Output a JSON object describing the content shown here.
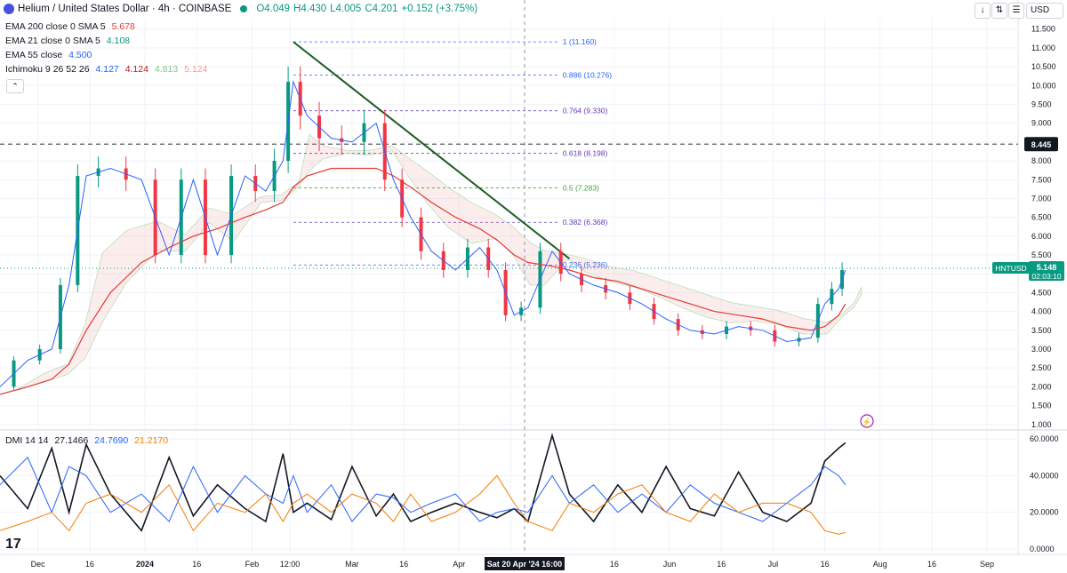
{
  "header": {
    "symbol": "Helium / United States Dollar · 4h · COINBASE",
    "open": "O4.049",
    "high": "H4.430",
    "low": "L4.005",
    "close": "C4.201",
    "change": "+0.152 (+3.75%)"
  },
  "indicators": [
    {
      "label": "EMA 200 close 0 SMA 5",
      "value": "5.678",
      "color": "#e53935"
    },
    {
      "label": "EMA 21 close 0 SMA 5",
      "value": "4.108",
      "color": "#089981"
    },
    {
      "label": "EMA 55 close",
      "value": "4.500",
      "color": "#2962ff"
    },
    {
      "label": "Ichimoku 9 26 52 26",
      "values": [
        "4.127",
        "4.124",
        "4.813",
        "5.124"
      ],
      "colors": [
        "#2962ff",
        "#b71c1c",
        "#81c784",
        "#ef9a9a"
      ]
    }
  ],
  "dmi_legend": {
    "label": "DMI 14 14",
    "values": [
      "27.1466",
      "24.7690",
      "21.2170"
    ],
    "colors": [
      "#131722",
      "#2962ff",
      "#f57c00"
    ]
  },
  "top_controls": {
    "down": "↓",
    "updown": "⇅",
    "menu": "☰",
    "expand": "⛶",
    "currency": "USD"
  },
  "price_axis": {
    "ticks": [
      "11.500",
      "11.000",
      "10.500",
      "10.000",
      "9.500",
      "9.000",
      "8.500",
      "8.000",
      "7.500",
      "7.000",
      "6.500",
      "6.000",
      "5.500",
      "5.000",
      "4.500",
      "4.000",
      "3.500",
      "3.000",
      "2.500",
      "2.000",
      "1.500",
      "1.000"
    ],
    "marker_line_value": "8.445",
    "symbol_tag": "HNTUSD",
    "last_price": "5.148",
    "countdown": "02:03:10"
  },
  "dmi_axis": {
    "ticks": [
      "60.0000",
      "40.0000",
      "20.0000",
      "0.0000"
    ]
  },
  "time_axis": {
    "ticks": [
      "Dec",
      "16",
      "2024",
      "16",
      "Feb",
      "12:00",
      "Mar",
      "16",
      "Apr",
      "16",
      "16",
      "Jun",
      "16",
      "Jul",
      "16",
      "Aug",
      "16",
      "Sep"
    ],
    "crosshair_label": "Sat 20 Apr '24   16:00"
  },
  "fib_levels": [
    {
      "label": "1 (11.160)",
      "color": "#2962ff"
    },
    {
      "label": "0.886 (10.276)",
      "color": "#2962ff"
    },
    {
      "label": "0.764 (9.330)",
      "color": "#673ab7"
    },
    {
      "label": "0.618 (8.198)",
      "color": "#673ab7"
    },
    {
      "label": "0.5 (7.283)",
      "color": "#43a047"
    },
    {
      "label": "0.382 (6.368)",
      "color": "#673ab7"
    },
    {
      "label": "0.236 (5.236)",
      "color": "#2962ff"
    }
  ],
  "logo_text": "17",
  "chart_data": [
    {
      "type": "line",
      "xlabel": "",
      "ylabel": "",
      "x": [
        "2023-11-20",
        "2023-11-28",
        "2023-12-05",
        "2023-12-10",
        "2023-12-15",
        "2023-12-22",
        "2023-12-31",
        "2024-01-08",
        "2024-01-15",
        "2024-01-22",
        "2024-01-30",
        "2024-02-05",
        "2024-02-10",
        "2024-02-13",
        "2024-02-17",
        "2024-02-24",
        "2024-03-01",
        "2024-03-08",
        "2024-03-13",
        "2024-03-18",
        "2024-03-24",
        "2024-03-31",
        "2024-04-07",
        "2024-04-12",
        "2024-04-17",
        "2024-04-21",
        "2024-04-28",
        "2024-05-03",
        "2024-05-10",
        "2024-05-17",
        "2024-05-24",
        "2024-05-31",
        "2024-06-07",
        "2024-06-14",
        "2024-06-21",
        "2024-06-28",
        "2024-07-05",
        "2024-07-12",
        "2024-07-16",
        "2024-07-20",
        "2024-07-22"
      ],
      "series": [
        {
          "name": "",
          "values": [
            2.0,
            2.7,
            3.0,
            4.7,
            7.6,
            7.8,
            7.5,
            5.5,
            7.5,
            5.5,
            7.6,
            7.2,
            8.0,
            10.1,
            9.2,
            8.6,
            8.5,
            9.0,
            7.5,
            6.5,
            5.6,
            5.1,
            5.7,
            5.1,
            3.9,
            4.1,
            5.6,
            5.0,
            4.7,
            4.5,
            4.2,
            3.8,
            3.5,
            3.4,
            3.6,
            3.5,
            3.2,
            3.3,
            4.2,
            4.6,
            5.1
          ]
        },
        {
          "name": "",
          "values": [
            1.8,
            2.0,
            2.2,
            2.6,
            3.5,
            4.5,
            5.3,
            5.7,
            6.0,
            6.2,
            6.5,
            6.7,
            6.9,
            7.3,
            7.6,
            7.8,
            7.8,
            7.8,
            7.6,
            7.3,
            6.9,
            6.5,
            6.2,
            5.9,
            5.5,
            5.3,
            5.2,
            5.1,
            4.9,
            4.8,
            4.6,
            4.4,
            4.2,
            4.0,
            3.9,
            3.8,
            3.6,
            3.5,
            3.6,
            3.9,
            4.2
          ]
        }
      ],
      "ylim": [
        0.9,
        11.8
      ]
    },
    {
      "type": "line",
      "x": [
        "2023-11-20",
        "2023-11-28",
        "2023-12-05",
        "2023-12-10",
        "2023-12-15",
        "2023-12-22",
        "2023-12-31",
        "2024-01-08",
        "2024-01-15",
        "2024-01-22",
        "2024-01-30",
        "2024-02-05",
        "2024-02-10",
        "2024-02-13",
        "2024-02-17",
        "2024-02-24",
        "2024-03-01",
        "2024-03-08",
        "2024-03-13",
        "2024-03-18",
        "2024-03-24",
        "2024-03-31",
        "2024-04-07",
        "2024-04-12",
        "2024-04-17",
        "2024-04-21",
        "2024-04-28",
        "2024-05-03",
        "2024-05-10",
        "2024-05-17",
        "2024-05-24",
        "2024-05-31",
        "2024-06-07",
        "2024-06-14",
        "2024-06-21",
        "2024-06-28",
        "2024-07-05",
        "2024-07-12",
        "2024-07-16",
        "2024-07-20",
        "2024-07-22"
      ],
      "series": [
        {
          "name": "",
          "values": [
            40,
            22,
            55,
            20,
            57,
            30,
            10,
            50,
            18,
            35,
            22,
            15,
            52,
            20,
            25,
            16,
            45,
            18,
            30,
            15,
            20,
            25,
            20,
            17,
            22,
            15,
            62,
            30,
            15,
            35,
            20,
            45,
            22,
            18,
            42,
            20,
            15,
            25,
            48,
            55,
            58
          ]
        },
        {
          "name": "",
          "values": [
            35,
            50,
            20,
            45,
            40,
            20,
            30,
            15,
            45,
            20,
            40,
            30,
            25,
            40,
            20,
            35,
            15,
            30,
            28,
            20,
            25,
            30,
            15,
            20,
            22,
            20,
            40,
            25,
            35,
            20,
            30,
            20,
            35,
            25,
            20,
            15,
            25,
            35,
            45,
            40,
            35
          ]
        },
        {
          "name": "",
          "values": [
            10,
            15,
            20,
            10,
            25,
            30,
            20,
            35,
            10,
            25,
            20,
            30,
            15,
            25,
            30,
            20,
            30,
            25,
            15,
            30,
            15,
            20,
            30,
            40,
            25,
            15,
            10,
            25,
            20,
            30,
            35,
            20,
            15,
            30,
            20,
            25,
            25,
            20,
            10,
            8,
            9
          ]
        }
      ],
      "ylim": [
        -2,
        64
      ]
    }
  ]
}
